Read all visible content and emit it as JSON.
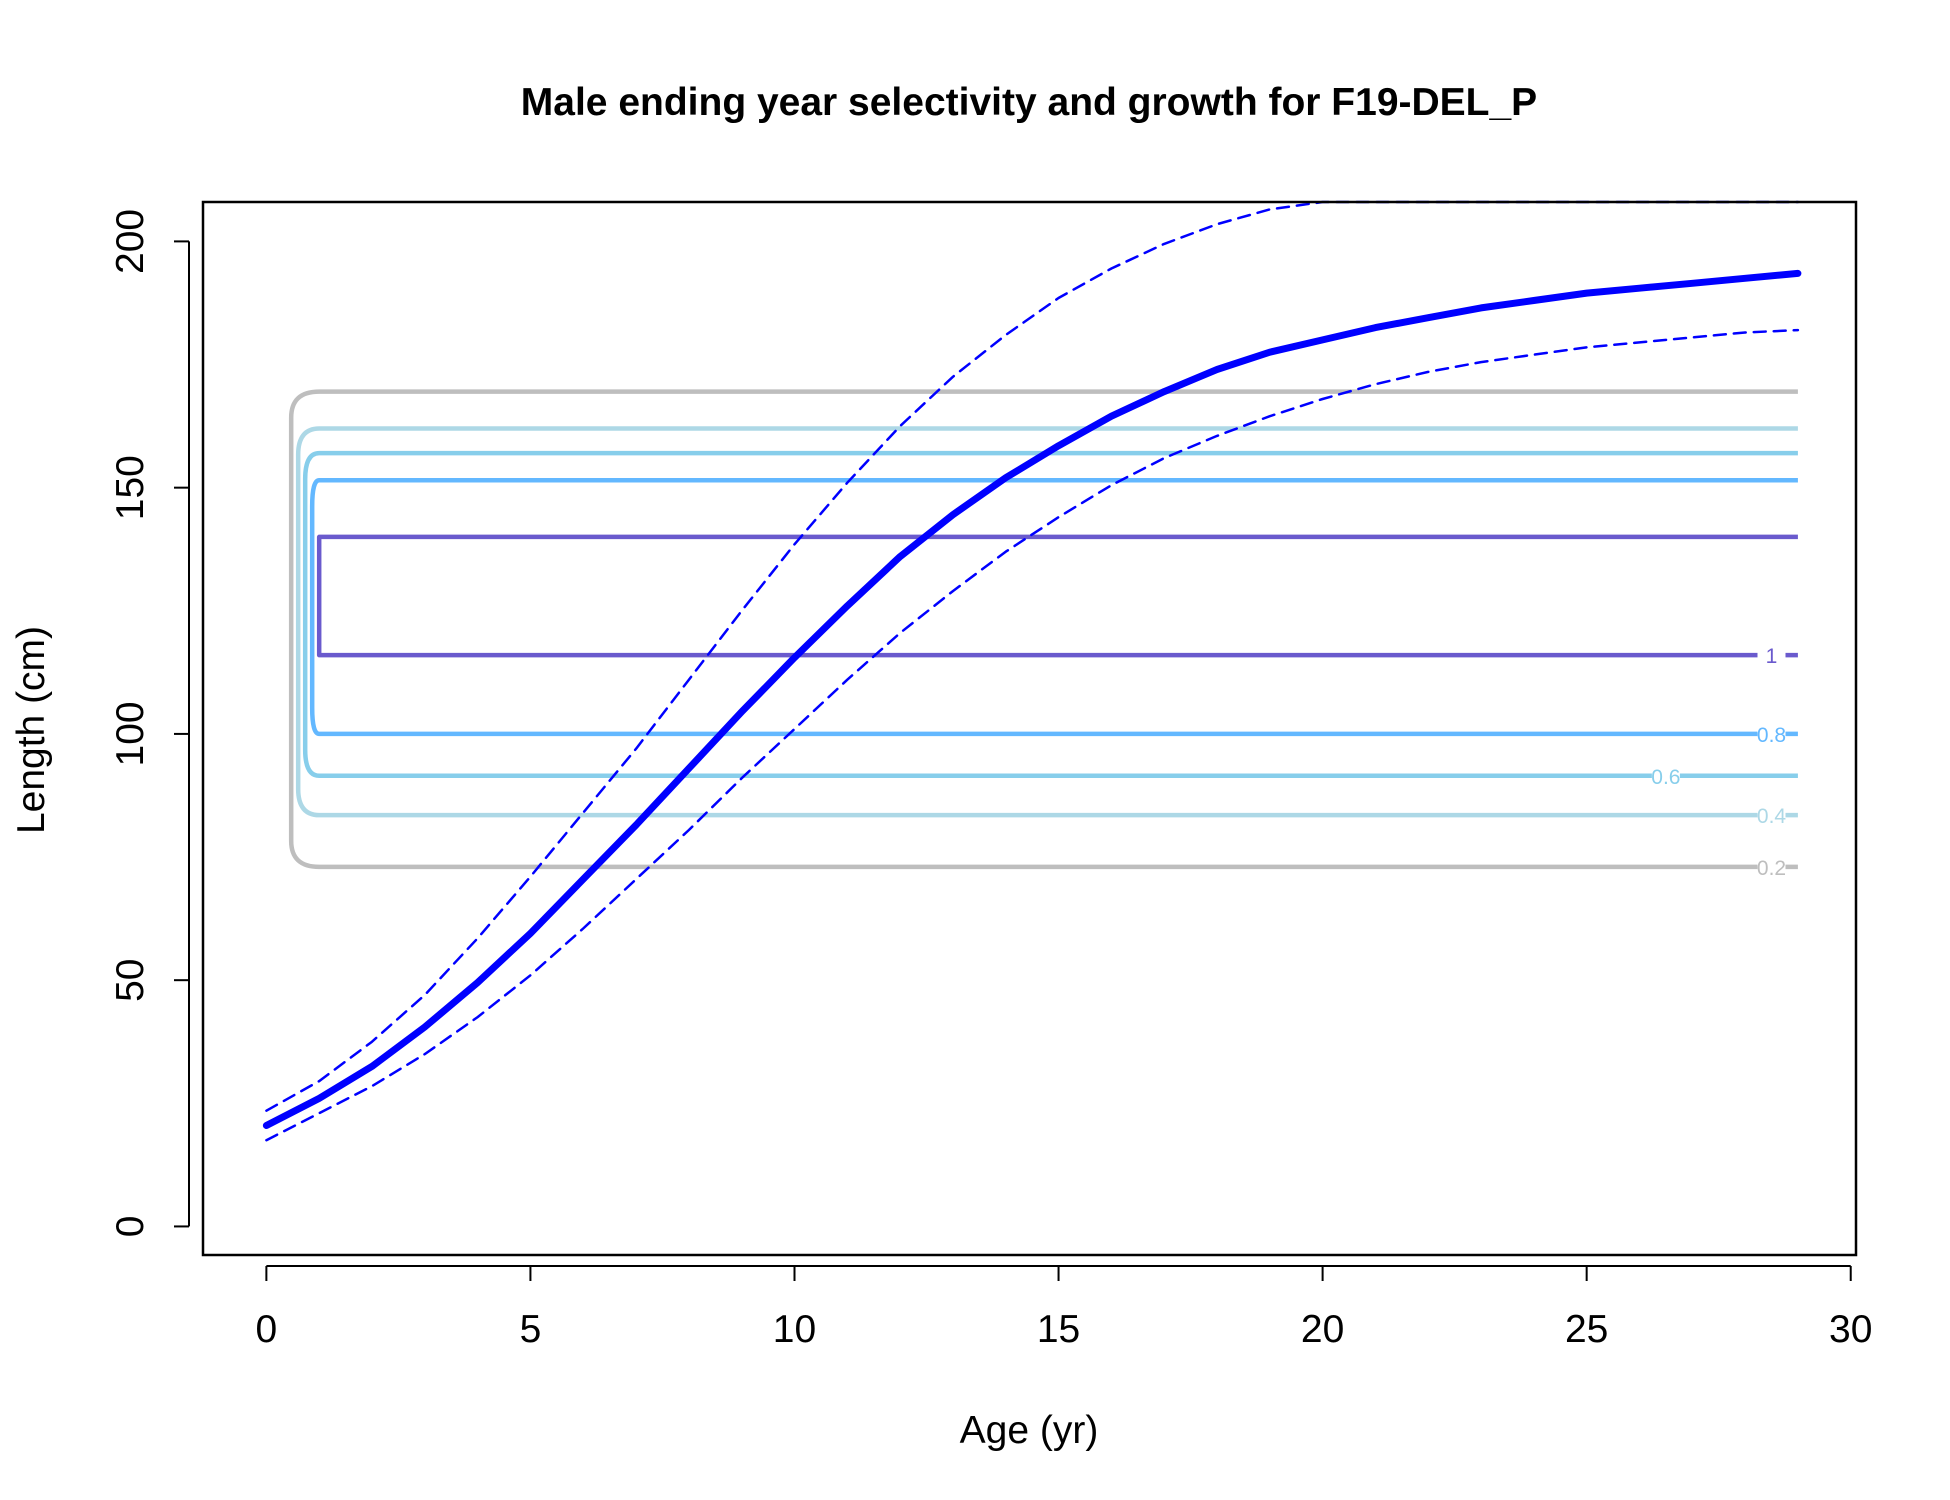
{
  "chart_data": {
    "type": "line",
    "title": "Male ending year selectivity and growth for F19-DEL_P",
    "xlabel": "Age (yr)",
    "ylabel": "Length (cm)",
    "xlim": [
      -1.2,
      30.1
    ],
    "ylim": [
      -5.8,
      208
    ],
    "x_ticks": [
      0,
      5,
      10,
      15,
      20,
      25,
      30
    ],
    "x_tick_labels": [
      "0",
      "5",
      "10",
      "15",
      "20",
      "25",
      "30"
    ],
    "y_ticks": [
      0,
      50,
      100,
      150,
      200
    ],
    "y_tick_labels": [
      "0",
      "50",
      "100",
      "150",
      "200"
    ],
    "grid": false,
    "legend": "none",
    "series": [
      {
        "role": "mean",
        "color": "#0000ff",
        "style": "solid-thick",
        "x": [
          0,
          1,
          2,
          3,
          4,
          5,
          6,
          7,
          8,
          9,
          10,
          11,
          12,
          13,
          14,
          15,
          16,
          17,
          18,
          19,
          20,
          21,
          22,
          23,
          24,
          25,
          26,
          27,
          28,
          29
        ],
        "y": [
          20.5,
          26,
          32.5,
          40.5,
          49.5,
          59.5,
          70.5,
          81.5,
          93,
          104.5,
          115.5,
          126,
          136,
          144.5,
          152,
          158.5,
          164.5,
          169.5,
          174,
          177.5,
          180,
          182.5,
          184.5,
          186.5,
          188,
          189.5,
          190.5,
          191.5,
          192.5,
          193.5
        ]
      },
      {
        "role": "upper",
        "color": "#0000ff",
        "style": "dashed",
        "x": [
          0,
          1,
          2,
          3,
          4,
          5,
          6,
          7,
          8,
          9,
          10,
          11,
          12,
          13,
          14,
          15,
          16,
          17,
          18,
          19,
          20,
          21,
          22,
          23,
          24,
          25,
          26,
          27,
          28,
          29
        ],
        "y": [
          23.5,
          29.5,
          37.5,
          47,
          58.5,
          71,
          84,
          97,
          111,
          125,
          138.5,
          151,
          162.5,
          172.5,
          181,
          188.5,
          194.5,
          199.5,
          203.5,
          206.5,
          209,
          211,
          212.5,
          213.5,
          214.5,
          215,
          215.5,
          216,
          216,
          216.5
        ]
      },
      {
        "role": "lower",
        "color": "#0000ff",
        "style": "dashed",
        "x": [
          0,
          1,
          2,
          3,
          4,
          5,
          6,
          7,
          8,
          9,
          10,
          11,
          12,
          13,
          14,
          15,
          16,
          17,
          18,
          19,
          20,
          21,
          22,
          23,
          24,
          25,
          26,
          27,
          28,
          29
        ],
        "y": [
          17.5,
          23,
          28.5,
          35,
          42.5,
          51,
          60.5,
          70.5,
          80.5,
          91,
          101,
          111,
          120.5,
          129,
          137,
          144,
          150.5,
          156,
          160.5,
          164.5,
          168,
          171,
          173.5,
          175.5,
          177,
          178.5,
          179.5,
          180.5,
          181.5,
          182
        ]
      }
    ],
    "contours": [
      {
        "level": 0.2,
        "label": "0.2",
        "color": "#bebebe",
        "lower": 73,
        "upper": 169.5,
        "label_x": 28.5
      },
      {
        "level": 0.4,
        "label": "0.4",
        "color": "#add8e6",
        "lower": 83.5,
        "upper": 162,
        "label_x": 28.5
      },
      {
        "level": 0.6,
        "label": "0.6",
        "color": "#87ceeb",
        "lower": 91.5,
        "upper": 157,
        "label_x": 26.5
      },
      {
        "level": 0.8,
        "label": "0.8",
        "color": "#63b8ff",
        "lower": 100,
        "upper": 151.5,
        "label_x": 28.5
      },
      {
        "level": 1,
        "label": "1",
        "color": "#6a5acd",
        "lower": 116,
        "upper": 140,
        "label_x": 28.5
      }
    ]
  }
}
